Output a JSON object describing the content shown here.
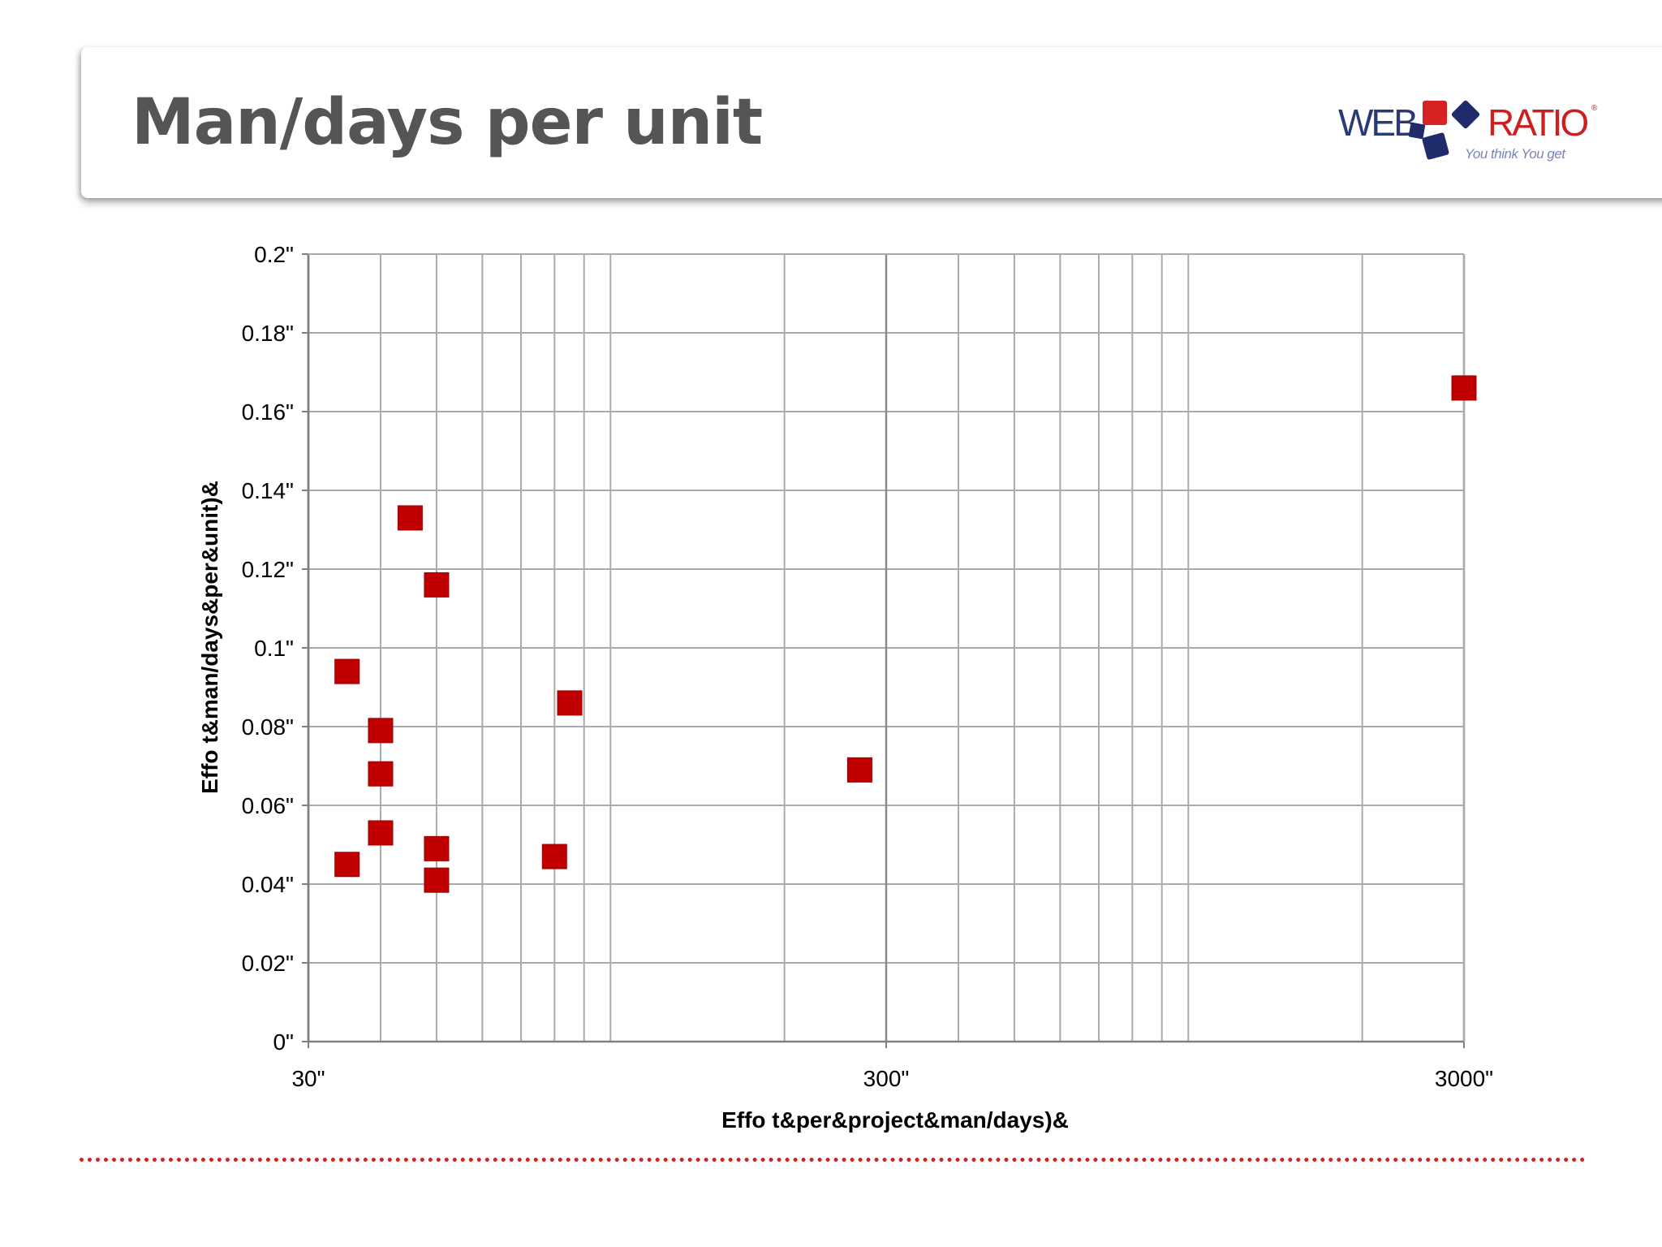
{
  "slide": {
    "title": "Man/days per unit"
  },
  "logo": {
    "word_left": "WEB",
    "word_right": "RATIO",
    "tagline": "You think You get",
    "colors": {
      "red": "#d62222",
      "navy": "#1f2b6b"
    }
  },
  "colors": {
    "title_text": "#555555",
    "marker": "#c00000",
    "grid": "#aaaaaa",
    "dotted_rule": "#d42020"
  },
  "chart_data": {
    "type": "scatter",
    "title": "",
    "xlabel": "Effo t&per&project&man/days)&",
    "ylabel": "Effo t&man/days&per&unit)&",
    "x_scale": "log",
    "xlim": [
      30,
      3000
    ],
    "ylim": [
      0,
      0.2
    ],
    "grid": true,
    "legend": "none",
    "x_ticks": [
      {
        "value": 30,
        "label": "30\""
      },
      {
        "value": 300,
        "label": "300\""
      },
      {
        "value": 3000,
        "label": "3000\""
      }
    ],
    "y_ticks": [
      {
        "value": 0,
        "label": "0\""
      },
      {
        "value": 0.02,
        "label": "0.02\""
      },
      {
        "value": 0.04,
        "label": "0.04\""
      },
      {
        "value": 0.06,
        "label": "0.06\""
      },
      {
        "value": 0.08,
        "label": "0.08\""
      },
      {
        "value": 0.1,
        "label": "0.1\""
      },
      {
        "value": 0.12,
        "label": "0.12\""
      },
      {
        "value": 0.14,
        "label": "0.14\""
      },
      {
        "value": 0.16,
        "label": "0.16\""
      },
      {
        "value": 0.18,
        "label": "0.18\""
      },
      {
        "value": 0.2,
        "label": "0.2\""
      }
    ],
    "series": [
      {
        "marker": "square",
        "color": "#c00000",
        "points": [
          {
            "x": 35,
            "y": 0.094
          },
          {
            "x": 35,
            "y": 0.045
          },
          {
            "x": 40,
            "y": 0.079
          },
          {
            "x": 40,
            "y": 0.068
          },
          {
            "x": 40,
            "y": 0.053
          },
          {
            "x": 45,
            "y": 0.133
          },
          {
            "x": 50,
            "y": 0.116
          },
          {
            "x": 50,
            "y": 0.049
          },
          {
            "x": 50,
            "y": 0.041
          },
          {
            "x": 80,
            "y": 0.047
          },
          {
            "x": 85,
            "y": 0.086
          },
          {
            "x": 270,
            "y": 0.069
          },
          {
            "x": 3000,
            "y": 0.166
          }
        ]
      }
    ]
  }
}
